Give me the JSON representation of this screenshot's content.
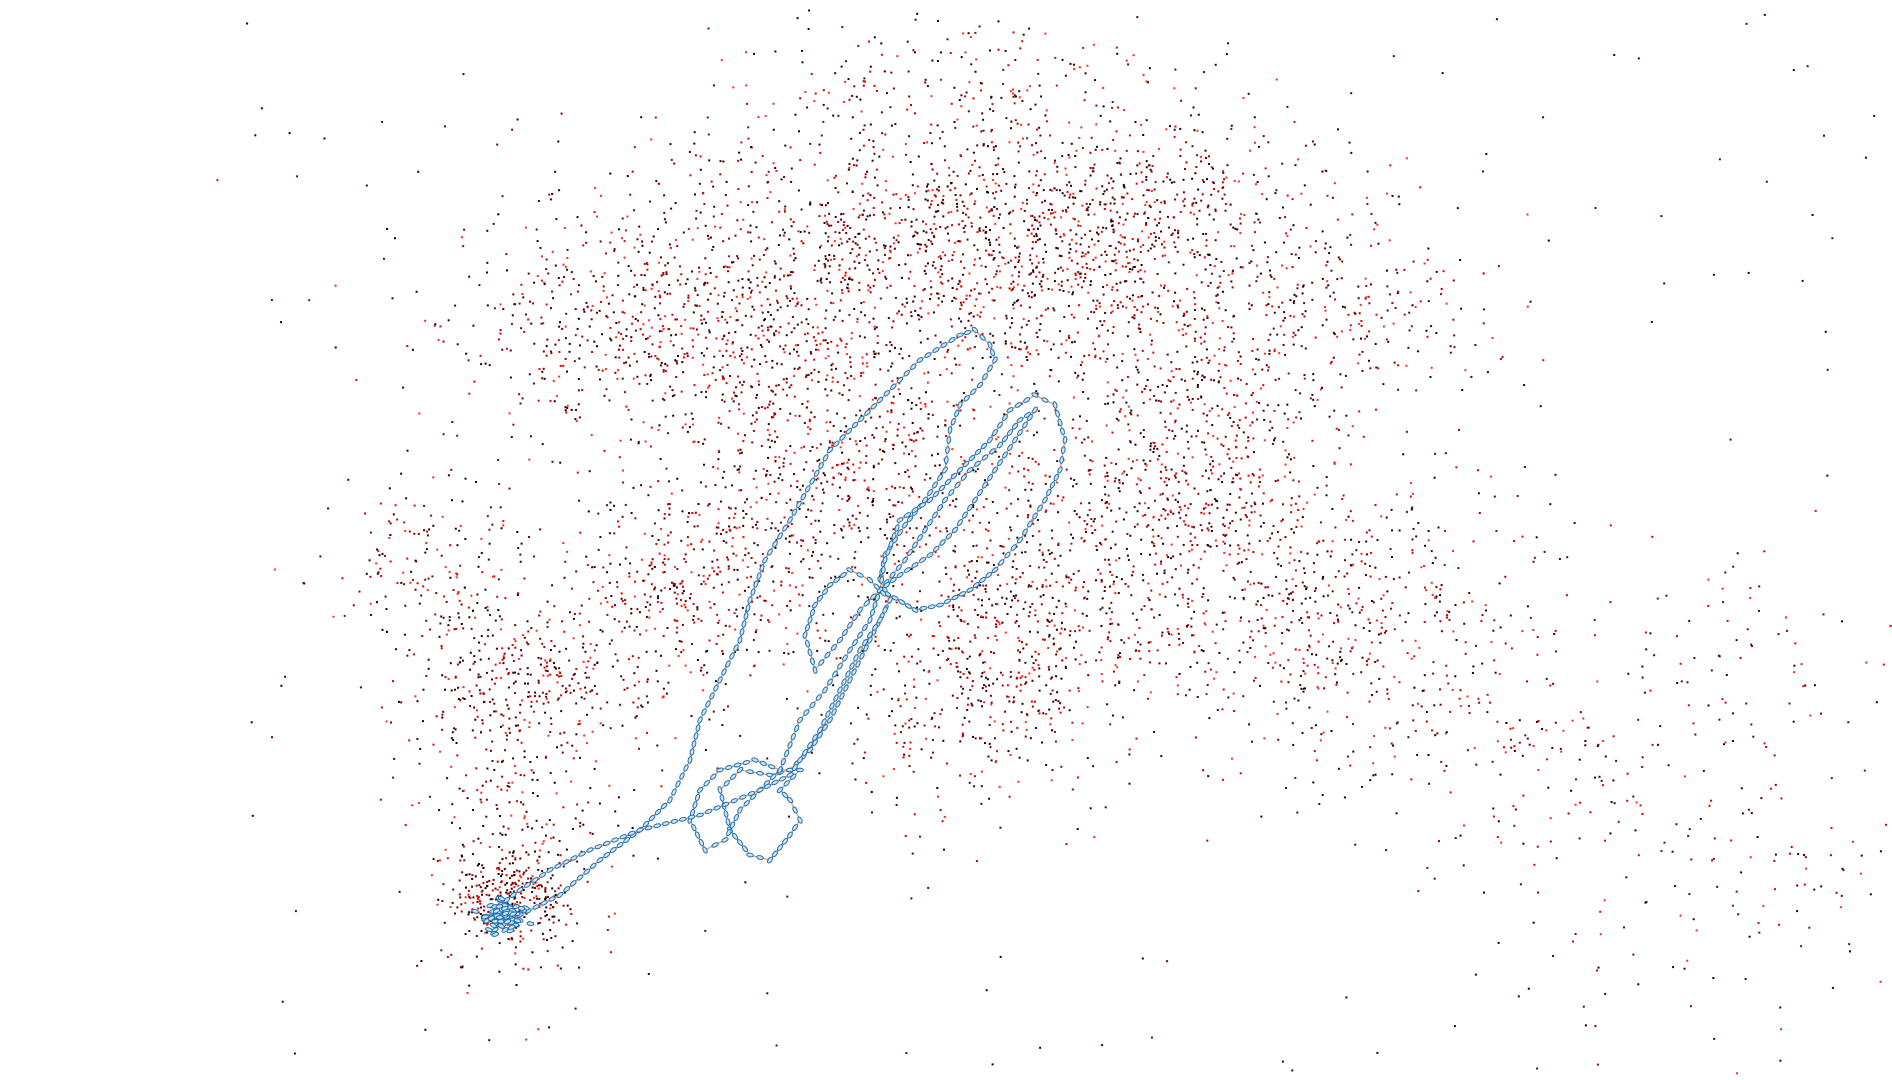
{
  "scene": {
    "background": "#ffffff",
    "map_point_colors": [
      "#1a0000",
      "#3a0000",
      "#6b0000",
      "#a40000",
      "#e00000",
      "#ff2a1a"
    ],
    "trajectory_line_color": "#f0a060",
    "camera_pose_color": "#1f6fb2",
    "camera_pose_fill": "#cfe4f5"
  }
}
